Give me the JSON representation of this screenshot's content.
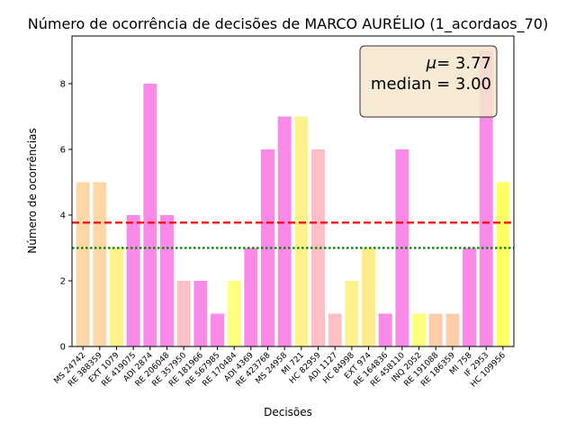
{
  "chart_data": {
    "type": "bar",
    "title": "Número de ocorrência de decisões de MARCO AURÉLIO (1_acordaos_70)",
    "xlabel": "Decisões",
    "ylabel": "Número de ocorrências",
    "ylim": [
      0,
      9.45
    ],
    "yticks": [
      0,
      2,
      4,
      6,
      8
    ],
    "grid": false,
    "categories": [
      "MS 24742",
      "RE 388359",
      "EXT 1079",
      "RE 419075",
      "ADI 2874",
      "RE 206048",
      "RE 357950",
      "RE 181966",
      "RE 567985",
      "RE 170484",
      "ADI 4369",
      "RE 423768",
      "MS 24958",
      "MI 721",
      "HC 82959",
      "ADI 1127",
      "HC 84998",
      "EXT 974",
      "RE 164836",
      "RE 458110",
      "INQ 2052",
      "RE 191088",
      "RE 186359",
      "MI 758",
      "IF 2953",
      "HC 109956"
    ],
    "values": [
      5,
      5,
      3,
      4,
      8,
      4,
      2,
      2,
      1,
      2,
      3,
      6,
      7,
      7,
      6,
      1,
      2,
      3,
      1,
      6,
      1,
      1,
      1,
      3,
      9,
      5
    ],
    "bar_colors": [
      "#ffd7a6",
      "#ffd7a6",
      "#fff28c",
      "#fa8ae8",
      "#fa8ae8",
      "#fa8ae8",
      "#ffbfc5",
      "#fa8ae8",
      "#fa8ae8",
      "#ffff80",
      "#fa8ae8",
      "#fa8ae8",
      "#fa8ae8",
      "#fff28c",
      "#ffbfc5",
      "#ffbfc5",
      "#fff28c",
      "#ffea8c",
      "#fa8ae8",
      "#fa8ae8",
      "#ffff80",
      "#ffccaa",
      "#ffccaa",
      "#fa8ae8",
      "#fa8ae8",
      "#ffff66"
    ],
    "mean": 3.77,
    "median": 3.0,
    "mean_line_color": "#ff0000",
    "median_line_color": "#008000",
    "stats_box": {
      "mean_text": "= 3.77",
      "mu_symbol": "μ",
      "median_text": "median = 3.00",
      "placement": "top-right",
      "background": "#f5e6cc"
    }
  }
}
